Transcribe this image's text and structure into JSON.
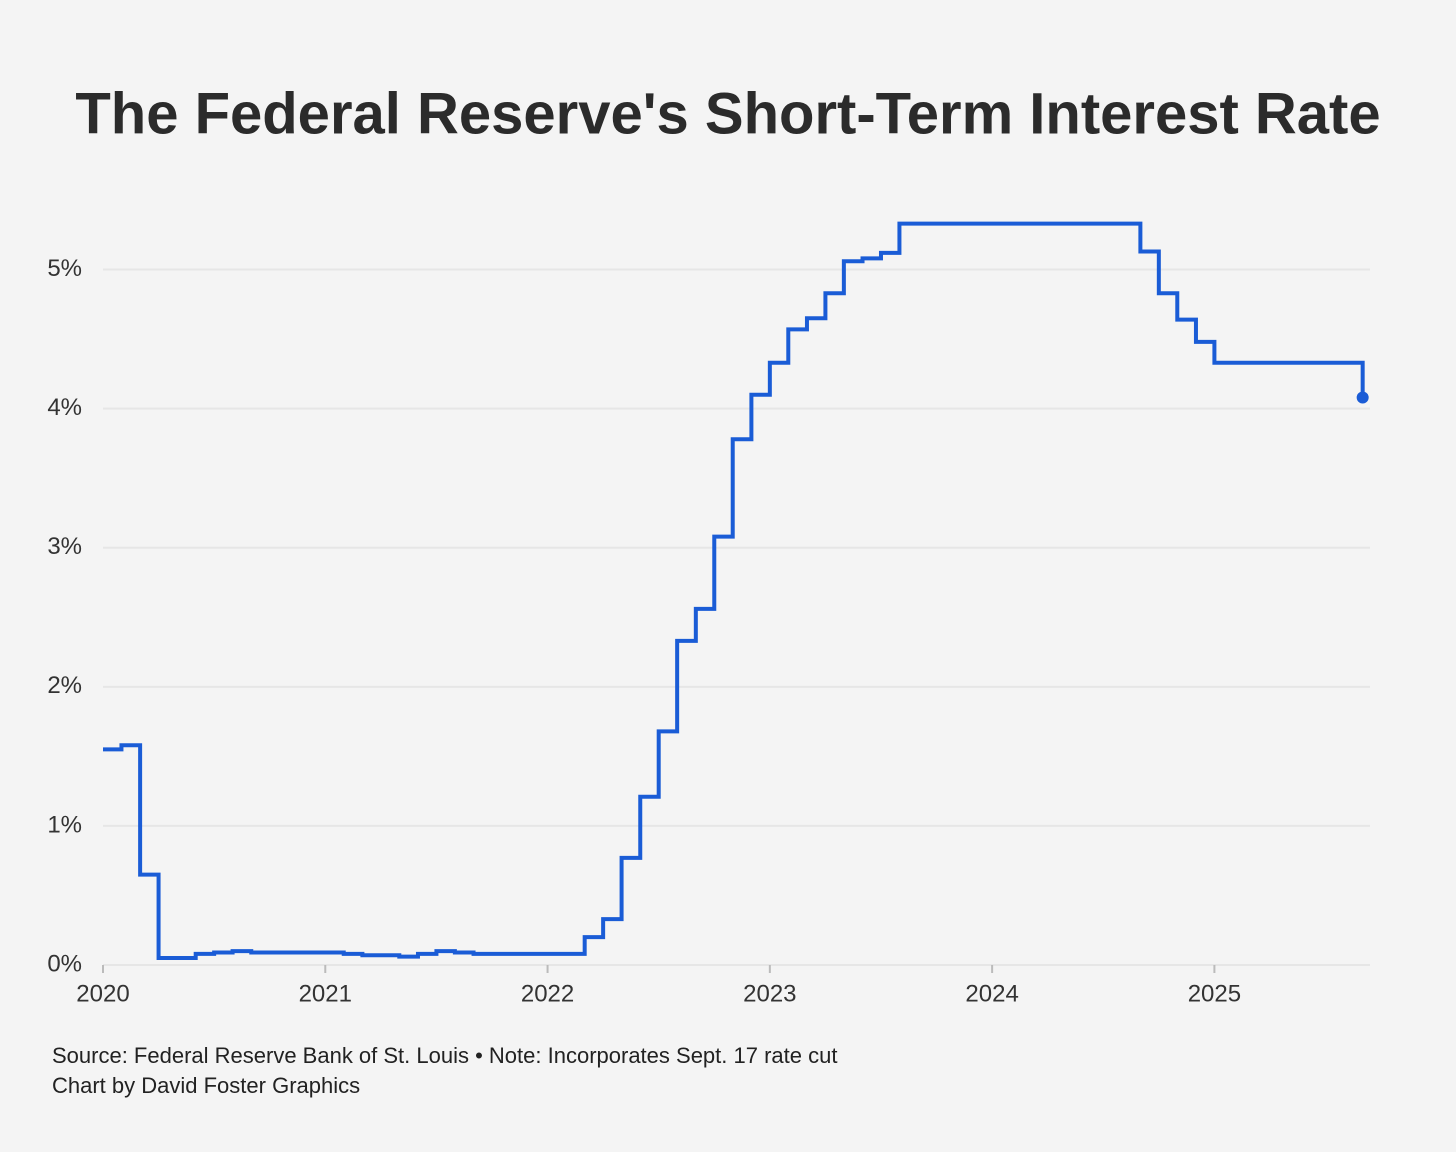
{
  "chart_data": {
    "type": "step-line",
    "title": "The Federal Reserve's Short-Term Interest Rate",
    "source": "Source: Federal Reserve Bank of St. Louis • Note: Incorporates Sept. 17 rate cut",
    "credit": "Chart by David Foster Graphics",
    "x": [
      2020,
      2020.083,
      2020.167,
      2020.25,
      2020.333,
      2020.417,
      2020.5,
      2020.583,
      2020.667,
      2020.75,
      2020.833,
      2020.917,
      2021,
      2021.083,
      2021.167,
      2021.25,
      2021.333,
      2021.417,
      2021.5,
      2021.583,
      2021.667,
      2021.75,
      2021.833,
      2021.917,
      2022,
      2022.083,
      2022.167,
      2022.25,
      2022.333,
      2022.417,
      2022.5,
      2022.583,
      2022.667,
      2022.75,
      2022.833,
      2022.917,
      2023,
      2023.083,
      2023.167,
      2023.25,
      2023.333,
      2023.417,
      2023.5,
      2023.583,
      2023.667,
      2023.75,
      2023.833,
      2023.917,
      2024,
      2024.083,
      2024.167,
      2024.25,
      2024.333,
      2024.417,
      2024.5,
      2024.583,
      2024.667,
      2024.75,
      2024.833,
      2024.917,
      2025,
      2025.083,
      2025.167,
      2025.25,
      2025.333,
      2025.417,
      2025.5,
      2025.583,
      2025.667
    ],
    "series": [
      {
        "color": "#1a5cd6",
        "values": [
          1.55,
          1.58,
          0.65,
          0.05,
          0.05,
          0.08,
          0.09,
          0.1,
          0.09,
          0.09,
          0.09,
          0.09,
          0.09,
          0.08,
          0.07,
          0.07,
          0.06,
          0.08,
          0.1,
          0.09,
          0.08,
          0.08,
          0.08,
          0.08,
          0.08,
          0.08,
          0.2,
          0.33,
          0.77,
          1.21,
          1.68,
          2.33,
          2.56,
          3.08,
          3.78,
          4.1,
          4.33,
          4.57,
          4.65,
          4.83,
          5.06,
          5.08,
          5.12,
          5.33,
          5.33,
          5.33,
          5.33,
          5.33,
          5.33,
          5.33,
          5.33,
          5.33,
          5.33,
          5.33,
          5.33,
          5.33,
          5.13,
          4.83,
          4.64,
          4.48,
          4.33,
          4.33,
          4.33,
          4.33,
          4.33,
          4.33,
          4.33,
          4.33,
          4.08
        ]
      }
    ],
    "xlim": [
      2020,
      2025.7
    ],
    "xticks": [
      2020,
      2021,
      2022,
      2023,
      2024,
      2025
    ],
    "ylim": [
      0,
      5.5
    ],
    "yticks": [
      {
        "value": 0,
        "label": "0%"
      },
      {
        "value": 1,
        "label": "1%"
      },
      {
        "value": 2,
        "label": "2%"
      },
      {
        "value": 3,
        "label": "3%"
      },
      {
        "value": 4,
        "label": "4%"
      },
      {
        "value": 5,
        "label": "5%"
      }
    ],
    "grid": true
  }
}
